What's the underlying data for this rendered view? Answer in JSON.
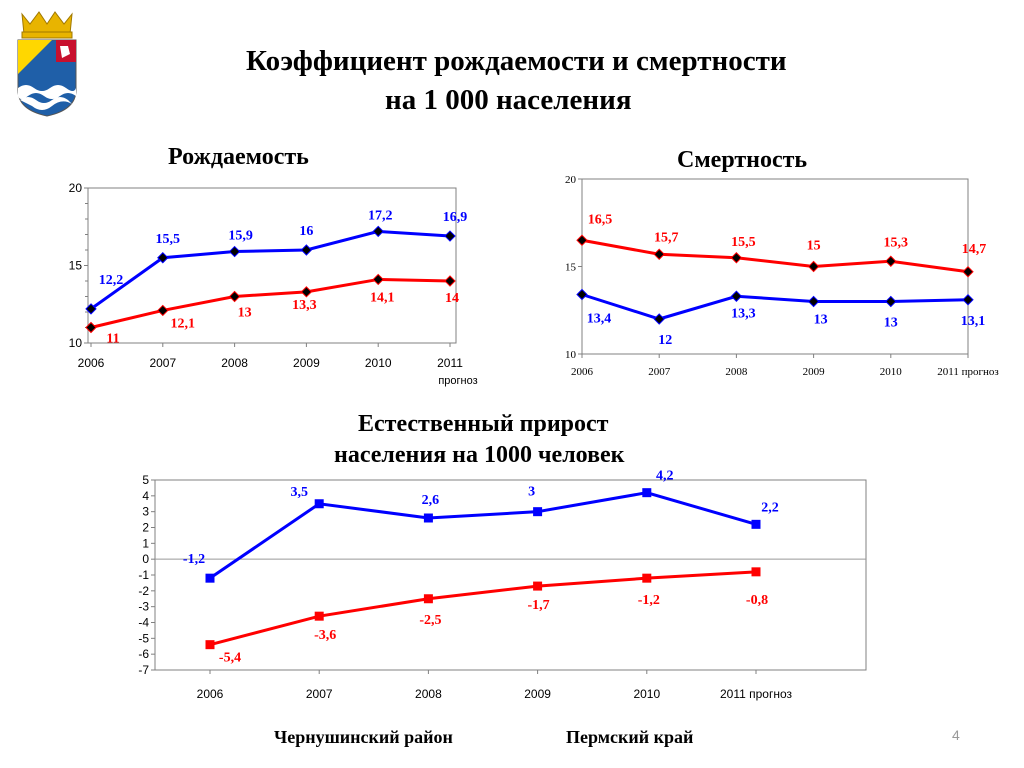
{
  "title_line1": "Коэффициент рождаемости и смертности",
  "title_line2": "на 1 000 населения",
  "page_number": "4",
  "colors": {
    "district": "#ff0000",
    "region": "#0000ff"
  },
  "legend": {
    "district": "Чернушинский район",
    "region": "Пермский край"
  },
  "chart_data": [
    {
      "type": "line",
      "title": "Рождаемость",
      "categories": [
        "2006",
        "2007",
        "2008",
        "2009",
        "2010",
        "2011"
      ],
      "category_note": "прогноз",
      "ylim": [
        10,
        20
      ],
      "yticks": [
        "10",
        "15",
        "20"
      ],
      "series": [
        {
          "name": "Пермский край",
          "color": "#0000ff",
          "values": [
            12.2,
            15.5,
            15.9,
            16,
            17.2,
            16.9
          ],
          "labels": [
            "12,2",
            "15,5",
            "15,9",
            "16",
            "17,2",
            "16,9"
          ]
        },
        {
          "name": "Чернушинский район",
          "color": "#ff0000",
          "values": [
            11,
            12.1,
            13,
            13.3,
            14.1,
            14
          ],
          "labels": [
            "11",
            "12,1",
            "13",
            "13,3",
            "14,1",
            "14"
          ]
        }
      ]
    },
    {
      "type": "line",
      "title": "Смертность",
      "categories": [
        "2006",
        "2007",
        "2008",
        "2009",
        "2010",
        "2011 прогноз"
      ],
      "ylim": [
        10,
        20
      ],
      "yticks": [
        "10",
        "15",
        "20"
      ],
      "series": [
        {
          "name": "Чернушинский район",
          "color": "#ff0000",
          "values": [
            16.5,
            15.7,
            15.5,
            15,
            15.3,
            14.7
          ],
          "labels": [
            "16,5",
            "15,7",
            "15,5",
            "15",
            "15,3",
            "14,7"
          ]
        },
        {
          "name": "Пермский край",
          "color": "#0000ff",
          "values": [
            13.4,
            12,
            13.3,
            13,
            13,
            13.1
          ],
          "labels": [
            "13,4",
            "12",
            "13,3",
            "13",
            "13",
            "13,1"
          ]
        }
      ]
    },
    {
      "type": "line",
      "title": "Естественный прирост населения на 1000 человек",
      "title_line1": "Естественный прирост",
      "title_line2": "населения на 1000 человек",
      "categories": [
        "2006",
        "2007",
        "2008",
        "2009",
        "2010",
        "2011 прогноз"
      ],
      "ylim": [
        -7,
        5
      ],
      "yticks": [
        "5",
        "4",
        "3",
        "2",
        "1",
        "0",
        "-1",
        "-2",
        "-3",
        "-4",
        "-5",
        "-6",
        "-7"
      ],
      "series": [
        {
          "name": "Пермский край",
          "color": "#0000ff",
          "values": [
            -1.2,
            3.5,
            2.6,
            3,
            4.2,
            2.2
          ],
          "labels": [
            "-1,2",
            "3,5",
            "2,6",
            "3",
            "4,2",
            "2,2"
          ]
        },
        {
          "name": "Чернушинский район",
          "color": "#ff0000",
          "values": [
            -5.4,
            -3.6,
            -2.5,
            -1.7,
            -1.2,
            -0.8
          ],
          "labels": [
            "-5,4",
            "-3,6",
            "-2,5",
            "-1,7",
            "-1,2",
            "-0,8"
          ]
        }
      ]
    }
  ]
}
